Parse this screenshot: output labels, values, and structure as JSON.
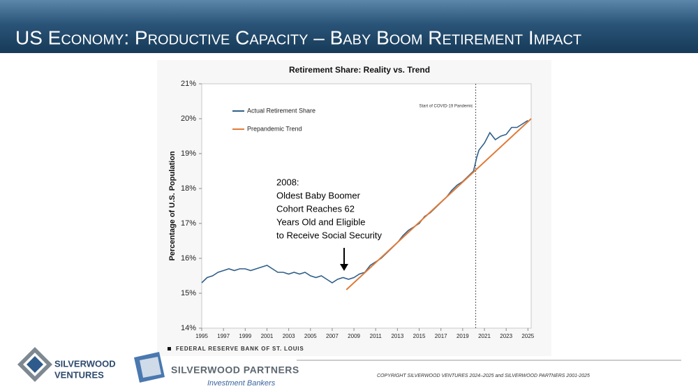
{
  "header": {
    "title": "US Economy: Productive Capacity – Baby Boom Retirement Impact"
  },
  "chart_data": {
    "type": "line",
    "title": "Retirement Share: Reality vs. Trend",
    "y_label": "Percentage of U.S. Population",
    "xlim": [
      1995,
      2025.3
    ],
    "ylim": [
      14,
      21
    ],
    "xticks": [
      1995,
      1997,
      1999,
      2001,
      2003,
      2005,
      2007,
      2009,
      2011,
      2013,
      2015,
      2017,
      2019,
      2021,
      2023,
      2025
    ],
    "yticks": [
      {
        "value": 14,
        "label": "14%"
      },
      {
        "value": 15,
        "label": "15%"
      },
      {
        "value": 16,
        "label": "16%"
      },
      {
        "value": 17,
        "label": "17%"
      },
      {
        "value": 18,
        "label": "18%"
      },
      {
        "value": 19,
        "label": "19%"
      },
      {
        "value": 20,
        "label": "20%"
      },
      {
        "value": 21,
        "label": "21%"
      }
    ],
    "legend": "top-left",
    "series": [
      {
        "name": "Actual Retirement Share",
        "color": "#2f5f8a",
        "x": [
          1995,
          1995.5,
          1996,
          1996.5,
          1997,
          1997.5,
          1998,
          1998.5,
          1999,
          1999.5,
          2000,
          2000.5,
          2001,
          2001.5,
          2002,
          2002.5,
          2003,
          2003.5,
          2004,
          2004.5,
          2005,
          2005.5,
          2006,
          2006.5,
          2007,
          2007.5,
          2008,
          2008.5,
          2009,
          2009.5,
          2010,
          2010.5,
          2011,
          2011.5,
          2012,
          2012.5,
          2013,
          2013.5,
          2014,
          2014.5,
          2015,
          2015.5,
          2016,
          2016.5,
          2017,
          2017.5,
          2018,
          2018.5,
          2019,
          2019.5,
          2020,
          2020.3,
          2020.5,
          2021,
          2021.5,
          2022,
          2022.5,
          2023,
          2023.5,
          2024,
          2024.5,
          2025
        ],
        "values": [
          15.3,
          15.45,
          15.5,
          15.6,
          15.65,
          15.7,
          15.65,
          15.7,
          15.7,
          15.65,
          15.7,
          15.75,
          15.8,
          15.7,
          15.6,
          15.6,
          15.55,
          15.6,
          15.55,
          15.6,
          15.5,
          15.45,
          15.5,
          15.4,
          15.3,
          15.4,
          15.45,
          15.4,
          15.45,
          15.55,
          15.6,
          15.8,
          15.9,
          16.0,
          16.15,
          16.3,
          16.45,
          16.65,
          16.8,
          16.9,
          17.0,
          17.2,
          17.3,
          17.45,
          17.6,
          17.75,
          17.95,
          18.1,
          18.2,
          18.35,
          18.5,
          18.9,
          19.1,
          19.3,
          19.6,
          19.4,
          19.5,
          19.55,
          19.75,
          19.75,
          19.85,
          19.95
        ]
      },
      {
        "name": "Prepandemic Trend",
        "color": "#e07b39",
        "x": [
          2008.3,
          2025.3
        ],
        "values": [
          15.1,
          20.0
        ]
      }
    ],
    "covid_x": 2020.2,
    "covid_label": "Start of COVID-19 Pandemic",
    "annotation": [
      "2008:",
      "Oldest Baby Boomer",
      "Cohort Reaches 62",
      "Years Old and Eligible",
      "to Receive Social Security"
    ],
    "source": "FEDERAL RESERVE BANK OF ST. LOUIS"
  },
  "footer": {
    "logo1": [
      "SILVERWOOD",
      "VENTURES"
    ],
    "logo2": "SILVERWOOD PARTNERS",
    "logo2_sub": "Investment Bankers",
    "copyright": "COPYRIGHT SILVERWOOD VENTURES 2024–2025 and SILVERWOOD PARTNERS 2001-2025"
  }
}
